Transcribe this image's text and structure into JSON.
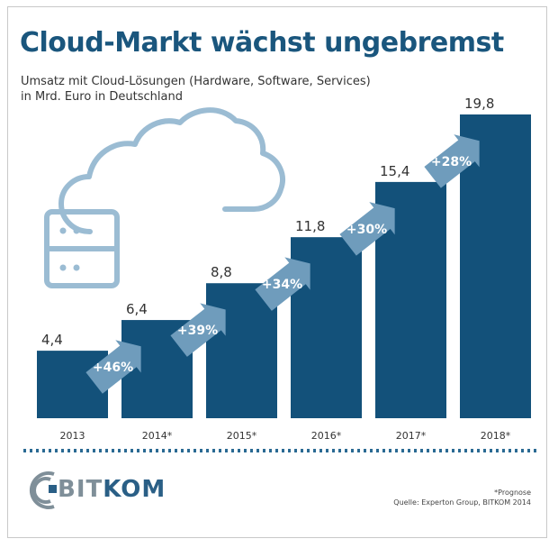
{
  "title": "Cloud-Markt wächst ungebremst",
  "subtitle_lines": [
    "Umsatz mit Cloud-Lösungen (Hardware, Software, Services)",
    "in Mrd. Euro in Deutschland"
  ],
  "colors": {
    "bar": "#13517a",
    "arrow": "#6f9cbc",
    "arrow_text": "#ffffff",
    "title": "#1a567d",
    "divider": "#2a6a93",
    "cloud_icon": "#9bbcd3"
  },
  "chart_data": {
    "type": "bar",
    "categories": [
      "2013",
      "2014*",
      "2015*",
      "2016*",
      "2017*",
      "2018*"
    ],
    "values": [
      4.4,
      6.4,
      8.8,
      11.8,
      15.4,
      19.8
    ],
    "value_labels": [
      "4,4",
      "6,4",
      "8,8",
      "11,8",
      "15,4",
      "19,8"
    ],
    "growth_labels": [
      "+46%",
      "+39%",
      "+34%",
      "+30%",
      "+28%"
    ],
    "xlabel": "",
    "ylabel": "",
    "ylim": [
      0,
      19.8
    ],
    "grid": false,
    "legend": "none"
  },
  "icons": [
    "cloud-server-icon"
  ],
  "logo": {
    "text_a": "BIT",
    "text_b": "KOM"
  },
  "footnote": {
    "line1": "*Prognose",
    "line2": "Quelle: Experton Group, BITKOM 2014"
  }
}
